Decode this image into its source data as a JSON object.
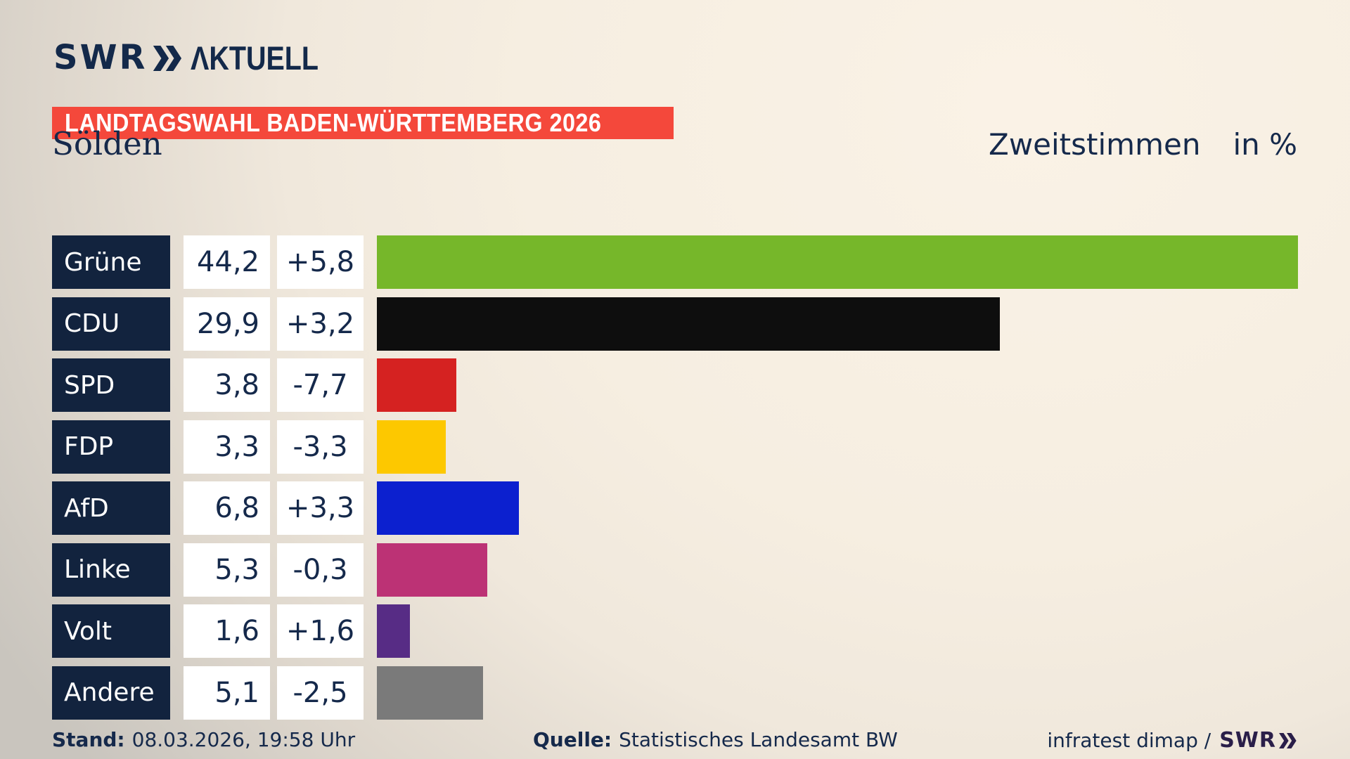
{
  "brand": {
    "swr": "SWR",
    "aktuell": "ΛKTUELL"
  },
  "badge": {
    "text": "LANDTAGSWAHL BADEN-WÜRTTEMBERG 2026",
    "background": "#f4483b"
  },
  "header": {
    "region": "Sölden",
    "measure": "Zweitstimmen",
    "unit": "in %"
  },
  "chart_data": {
    "type": "bar",
    "orientation": "horizontal",
    "title": "Sölden — Zweitstimmen in %",
    "categories": [
      "Grüne",
      "CDU",
      "SPD",
      "FDP",
      "AfD",
      "Linke",
      "Volt",
      "Andere"
    ],
    "values": [
      44.2,
      29.9,
      3.8,
      3.3,
      6.8,
      5.3,
      1.6,
      5.1
    ],
    "value_labels": [
      "44,2",
      "29,9",
      "3,8",
      "3,3",
      "6,8",
      "5,3",
      "1,6",
      "5,1"
    ],
    "diffs": [
      5.8,
      3.2,
      -7.7,
      -3.3,
      3.3,
      -0.3,
      1.6,
      -2.5
    ],
    "diff_labels": [
      "+5,8",
      "+3,2",
      "-7,7",
      "-3,3",
      "+3,3",
      "-0,3",
      "+1,6",
      "-2,5"
    ],
    "bar_colors": [
      "#76b72a",
      "#0e0e0e",
      "#d52221",
      "#fdc800",
      "#0c20cf",
      "#bc3275",
      "#572c85",
      "#7a7a7a"
    ],
    "xlim": [
      0,
      44.2
    ],
    "unit": "%",
    "legend": "none",
    "grid": false
  },
  "footer": {
    "stand_label": "Stand:",
    "stand_value": "08.03.2026, 19:58 Uhr",
    "quelle_label": "Quelle:",
    "quelle_value": "Statistisches Landesamt BW",
    "credit": "infratest dimap /",
    "credit_brand": "SWR"
  },
  "colors": {
    "badge_red": "#f4483b",
    "navy_text": "#15294b",
    "label_box_navy": "#12233e",
    "value_box_white": "#ffffff"
  }
}
